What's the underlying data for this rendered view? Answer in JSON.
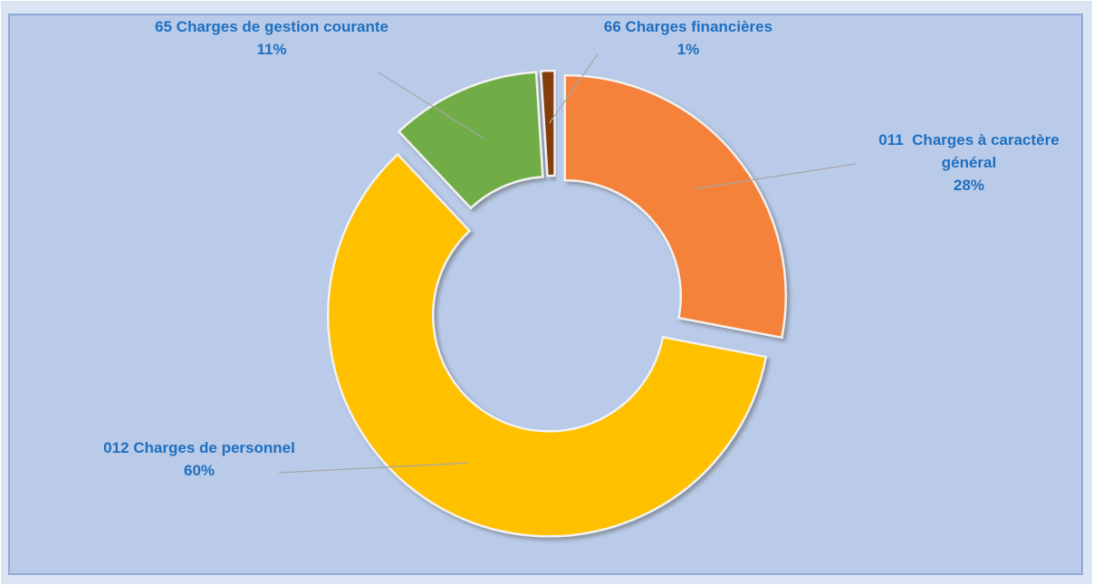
{
  "chart_data": {
    "type": "donut",
    "categories": [
      "011  Charges à caractère général",
      "012 Charges de personnel",
      "65 Charges de gestion courante",
      "66 Charges financières"
    ],
    "values": [
      28,
      60,
      11,
      1
    ],
    "value_labels": [
      "28%",
      "60%",
      "11%",
      "1%"
    ],
    "colors": [
      "#f5823a",
      "#ffc000",
      "#70ad47",
      "#843c0c"
    ]
  }
}
